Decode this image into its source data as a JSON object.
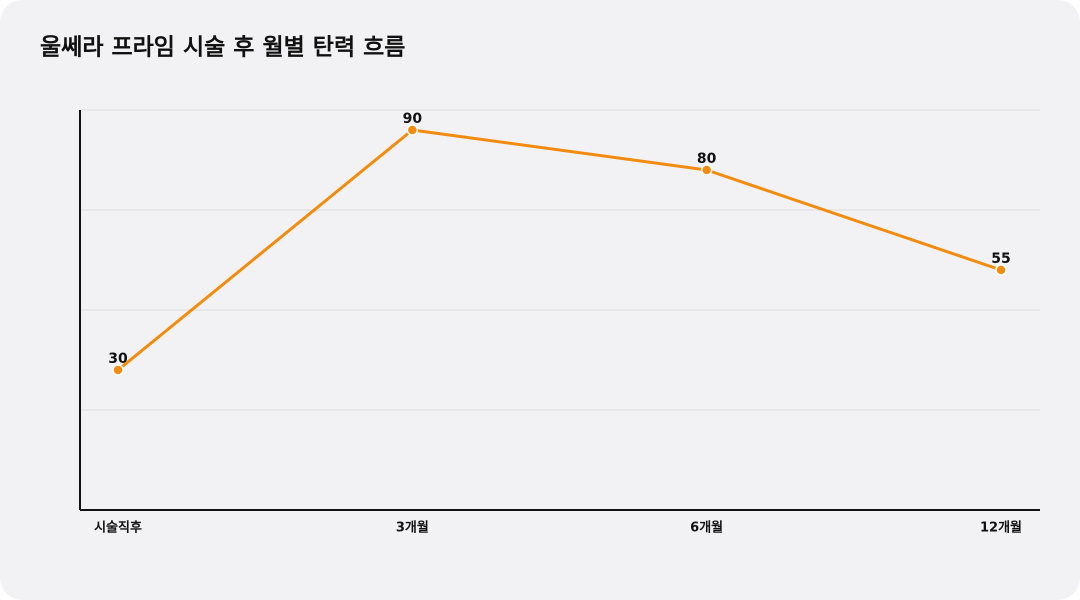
{
  "chart_data": {
    "type": "line",
    "title": "울쎄라 프라임 시술 후 월별 탄력 흐름",
    "categories": [
      "시술직후",
      "3개월",
      "6개월",
      "12개월"
    ],
    "values": [
      30,
      90,
      80,
      55
    ],
    "color": "#f28c0f",
    "ylim": [
      -5,
      95
    ],
    "yticks": [
      20,
      45,
      70,
      95
    ],
    "grid": true
  }
}
